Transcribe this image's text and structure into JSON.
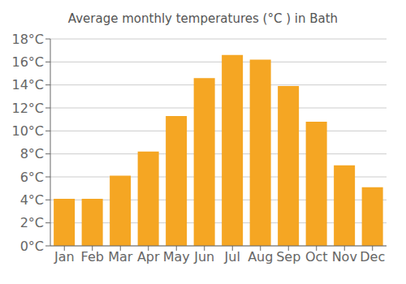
{
  "chart_data": {
    "type": "bar",
    "title": "Average monthly temperatures (°C ) in Bath",
    "categories": [
      "Jan",
      "Feb",
      "Mar",
      "Apr",
      "May",
      "Jun",
      "Jul",
      "Aug",
      "Sep",
      "Oct",
      "Nov",
      "Dec"
    ],
    "values": [
      4.1,
      4.1,
      6.1,
      8.2,
      11.3,
      14.6,
      16.6,
      16.2,
      13.9,
      10.8,
      7.0,
      5.1
    ],
    "color": "#F5A623",
    "ylim": [
      0,
      18
    ],
    "yticks": [
      {
        "value": 0,
        "label": "0°C"
      },
      {
        "value": 2,
        "label": "2°C"
      },
      {
        "value": 4,
        "label": "4°C"
      },
      {
        "value": 6,
        "label": "6°C"
      },
      {
        "value": 8,
        "label": "8°C"
      },
      {
        "value": 10,
        "label": "10°C"
      },
      {
        "value": 12,
        "label": "12°C"
      },
      {
        "value": 14,
        "label": "14°C"
      },
      {
        "value": 16,
        "label": "16°C"
      },
      {
        "value": 18,
        "label": "18°C"
      }
    ],
    "grid": true
  }
}
